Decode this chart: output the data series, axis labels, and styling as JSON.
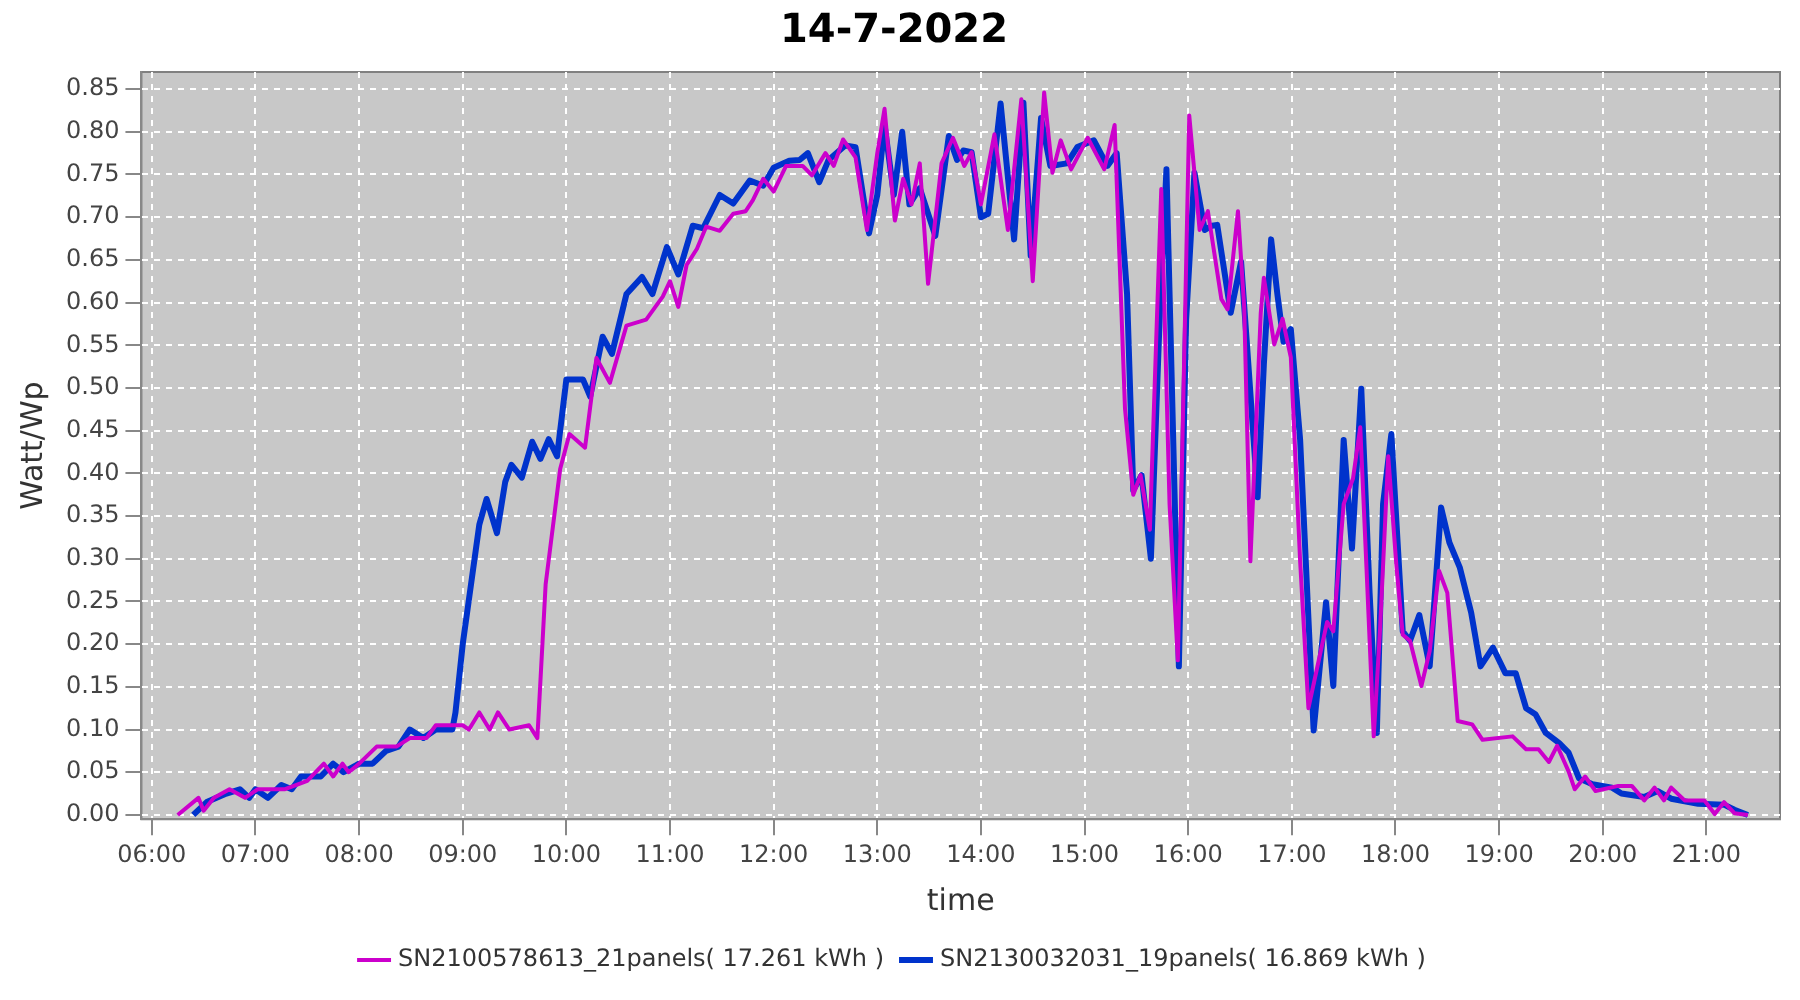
{
  "chart_data": {
    "type": "line",
    "title": "14-7-2022",
    "xlabel": "time",
    "ylabel": "Watt/Wp",
    "grid": true,
    "legend": "bottom",
    "marker": "none",
    "line_style": "solid",
    "xlim": [
      5.9,
      21.71
    ],
    "ylim": [
      -0.005,
      0.87
    ],
    "xticks": [
      {
        "value": 6,
        "label": "06:00"
      },
      {
        "value": 7,
        "label": "07:00"
      },
      {
        "value": 8,
        "label": "08:00"
      },
      {
        "value": 9,
        "label": "09:00"
      },
      {
        "value": 10,
        "label": "10:00"
      },
      {
        "value": 11,
        "label": "11:00"
      },
      {
        "value": 12,
        "label": "12:00"
      },
      {
        "value": 13,
        "label": "13:00"
      },
      {
        "value": 14,
        "label": "14:00"
      },
      {
        "value": 15,
        "label": "15:00"
      },
      {
        "value": 16,
        "label": "16:00"
      },
      {
        "value": 17,
        "label": "17:00"
      },
      {
        "value": 18,
        "label": "18:00"
      },
      {
        "value": 19,
        "label": "19:00"
      },
      {
        "value": 20,
        "label": "20:00"
      },
      {
        "value": 21,
        "label": "21:00"
      }
    ],
    "yticks": [
      {
        "value": 0,
        "label": "0.00"
      },
      {
        "value": 0.05,
        "label": "0.05"
      },
      {
        "value": 0.1,
        "label": "0.10"
      },
      {
        "value": 0.15,
        "label": "0.15"
      },
      {
        "value": 0.2,
        "label": "0.20"
      },
      {
        "value": 0.25,
        "label": "0.25"
      },
      {
        "value": 0.3,
        "label": "0.30"
      },
      {
        "value": 0.35,
        "label": "0.35"
      },
      {
        "value": 0.4,
        "label": "0.40"
      },
      {
        "value": 0.45,
        "label": "0.45"
      },
      {
        "value": 0.5,
        "label": "0.50"
      },
      {
        "value": 0.55,
        "label": "0.55"
      },
      {
        "value": 0.6,
        "label": "0.60"
      },
      {
        "value": 0.65,
        "label": "0.65"
      },
      {
        "value": 0.7,
        "label": "0.70"
      },
      {
        "value": 0.75,
        "label": "0.75"
      },
      {
        "value": 0.8,
        "label": "0.80"
      },
      {
        "value": 0.85,
        "label": "0.85"
      }
    ],
    "series": [
      {
        "name": "SN2100578613_21panels( 17.261 kWh )",
        "color": "#cc00cc",
        "x": [
          6.25,
          6.45,
          6.5,
          6.6,
          6.75,
          6.9,
          7.02,
          7.28,
          7.5,
          7.66,
          7.75,
          7.84,
          7.9,
          8.0,
          8.17,
          8.36,
          8.49,
          8.65,
          8.74,
          9.0,
          9.06,
          9.16,
          9.26,
          9.34,
          9.45,
          9.64,
          9.72,
          9.8,
          9.94,
          10.03,
          10.18,
          10.29,
          10.42,
          10.58,
          10.77,
          10.93,
          11.0,
          11.08,
          11.16,
          11.26,
          11.35,
          11.48,
          11.61,
          11.73,
          11.8,
          11.9,
          12.0,
          12.12,
          12.28,
          12.37,
          12.5,
          12.58,
          12.67,
          12.79,
          12.9,
          13.0,
          13.07,
          13.17,
          13.25,
          13.33,
          13.41,
          13.49,
          13.62,
          13.73,
          13.84,
          13.91,
          14.0,
          14.13,
          14.26,
          14.39,
          14.5,
          14.61,
          14.69,
          14.77,
          14.87,
          15.03,
          15.19,
          15.29,
          15.39,
          15.47,
          15.54,
          15.63,
          15.74,
          15.82,
          15.9,
          16.01,
          16.11,
          16.19,
          16.32,
          16.38,
          16.48,
          16.54,
          16.6,
          16.7,
          16.73,
          16.83,
          16.91,
          16.99,
          17.08,
          17.16,
          17.24,
          17.34,
          17.4,
          17.5,
          17.59,
          17.66,
          17.72,
          17.79,
          17.85,
          17.93,
          18.01,
          18.07,
          18.14,
          18.25,
          18.33,
          18.42,
          18.5,
          18.6,
          18.74,
          18.84,
          19.13,
          19.26,
          19.38,
          19.48,
          19.56,
          19.67,
          19.73,
          19.83,
          19.93,
          20.15,
          20.28,
          20.4,
          20.5,
          20.59,
          20.66,
          20.79,
          20.98,
          21.08,
          21.17,
          21.27,
          21.4
        ],
        "values": [
          0,
          0.02,
          0.005,
          0.02,
          0.03,
          0.02,
          0.03,
          0.03,
          0.04,
          0.06,
          0.045,
          0.06,
          0.05,
          0.06,
          0.08,
          0.08,
          0.09,
          0.09,
          0.105,
          0.105,
          0.1,
          0.12,
          0.1,
          0.12,
          0.1,
          0.105,
          0.09,
          0.27,
          0.405,
          0.446,
          0.43,
          0.535,
          0.506,
          0.573,
          0.58,
          0.607,
          0.625,
          0.595,
          0.644,
          0.663,
          0.689,
          0.684,
          0.704,
          0.707,
          0.72,
          0.745,
          0.73,
          0.76,
          0.76,
          0.749,
          0.775,
          0.76,
          0.791,
          0.77,
          0.685,
          0.775,
          0.827,
          0.696,
          0.745,
          0.715,
          0.763,
          0.622,
          0.763,
          0.793,
          0.76,
          0.776,
          0.715,
          0.797,
          0.685,
          0.838,
          0.625,
          0.846,
          0.752,
          0.79,
          0.756,
          0.793,
          0.756,
          0.808,
          0.476,
          0.375,
          0.398,
          0.334,
          0.733,
          0.364,
          0.181,
          0.819,
          0.685,
          0.707,
          0.604,
          0.592,
          0.707,
          0.595,
          0.297,
          0.588,
          0.629,
          0.551,
          0.581,
          0.536,
          0.297,
          0.125,
          0.17,
          0.226,
          0.215,
          0.364,
          0.394,
          0.454,
          0.29,
          0.092,
          0.215,
          0.42,
          0.29,
          0.211,
          0.204,
          0.151,
          0.192,
          0.286,
          0.26,
          0.11,
          0.106,
          0.088,
          0.092,
          0.077,
          0.077,
          0.062,
          0.081,
          0.051,
          0.03,
          0.045,
          0.028,
          0.034,
          0.034,
          0.017,
          0.032,
          0.017,
          0.032,
          0.017,
          0.017,
          0.001,
          0.015,
          0.002,
          0
        ]
      },
      {
        "name": "SN2130032031_19panels( 16.869 kWh )",
        "color": "#0033cc",
        "x": [
          6.4,
          6.53,
          6.72,
          6.85,
          6.94,
          7.0,
          7.12,
          7.25,
          7.35,
          7.44,
          7.63,
          7.75,
          7.85,
          8.0,
          8.13,
          8.26,
          8.38,
          8.49,
          8.62,
          8.74,
          8.9,
          8.93,
          9.0,
          9.08,
          9.16,
          9.23,
          9.33,
          9.41,
          9.47,
          9.57,
          9.67,
          9.75,
          9.83,
          9.91,
          10.0,
          10.16,
          10.23,
          10.35,
          10.44,
          10.58,
          10.73,
          10.83,
          10.97,
          11.08,
          11.22,
          11.32,
          11.48,
          11.61,
          11.77,
          11.9,
          12.0,
          12.15,
          12.25,
          12.33,
          12.44,
          12.53,
          12.69,
          12.79,
          12.92,
          13.0,
          13.07,
          13.16,
          13.24,
          13.31,
          13.41,
          13.56,
          13.69,
          13.77,
          13.83,
          13.91,
          14.0,
          14.07,
          14.19,
          14.32,
          14.41,
          14.48,
          14.58,
          14.67,
          14.83,
          14.93,
          15.09,
          15.22,
          15.31,
          15.41,
          15.47,
          15.55,
          15.64,
          15.73,
          15.79,
          15.91,
          15.98,
          16.06,
          16.16,
          16.23,
          16.28,
          16.41,
          16.51,
          16.58,
          16.67,
          16.73,
          16.8,
          16.86,
          16.92,
          16.99,
          17.08,
          17.21,
          17.33,
          17.4,
          17.5,
          17.58,
          17.67,
          17.75,
          17.82,
          17.88,
          17.96,
          18.07,
          18.14,
          18.23,
          18.33,
          18.44,
          18.52,
          18.62,
          18.73,
          18.82,
          18.94,
          19.06,
          19.16,
          19.26,
          19.35,
          19.45,
          19.58,
          19.67,
          19.77,
          19.9,
          20.09,
          20.18,
          20.4,
          20.53,
          20.66,
          20.92,
          21.17,
          21.27,
          21.4
        ],
        "values": [
          0,
          0.015,
          0.025,
          0.03,
          0.02,
          0.03,
          0.02,
          0.035,
          0.03,
          0.045,
          0.045,
          0.06,
          0.05,
          0.06,
          0.06,
          0.075,
          0.08,
          0.1,
          0.09,
          0.1,
          0.1,
          0.12,
          0.2,
          0.27,
          0.34,
          0.37,
          0.33,
          0.39,
          0.41,
          0.395,
          0.437,
          0.417,
          0.44,
          0.42,
          0.51,
          0.51,
          0.49,
          0.56,
          0.54,
          0.61,
          0.63,
          0.61,
          0.665,
          0.633,
          0.69,
          0.687,
          0.726,
          0.716,
          0.743,
          0.737,
          0.758,
          0.766,
          0.767,
          0.775,
          0.741,
          0.767,
          0.784,
          0.782,
          0.681,
          0.726,
          0.808,
          0.726,
          0.8,
          0.715,
          0.734,
          0.678,
          0.795,
          0.767,
          0.778,
          0.776,
          0.7,
          0.704,
          0.833,
          0.674,
          0.834,
          0.655,
          0.816,
          0.76,
          0.763,
          0.782,
          0.79,
          0.76,
          0.775,
          0.61,
          0.38,
          0.398,
          0.3,
          0.6,
          0.756,
          0.174,
          0.58,
          0.752,
          0.685,
          0.69,
          0.691,
          0.588,
          0.648,
          0.528,
          0.372,
          0.528,
          0.674,
          0.61,
          0.554,
          0.569,
          0.439,
          0.099,
          0.249,
          0.151,
          0.439,
          0.312,
          0.499,
          0.26,
          0.096,
          0.364,
          0.446,
          0.215,
          0.204,
          0.234,
          0.174,
          0.36,
          0.319,
          0.29,
          0.237,
          0.174,
          0.196,
          0.166,
          0.166,
          0.125,
          0.118,
          0.096,
          0.084,
          0.073,
          0.043,
          0.036,
          0.032,
          0.025,
          0.021,
          0.028,
          0.019,
          0.013,
          0.012,
          0.006,
          0
        ]
      }
    ]
  }
}
